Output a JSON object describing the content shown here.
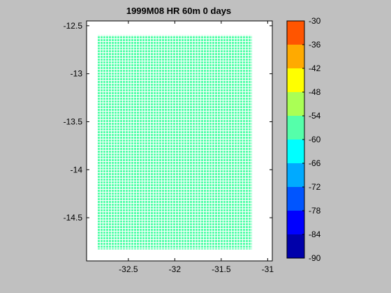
{
  "chart_data": {
    "type": "heatmap",
    "title": "1999M08 HR 60m 0 days",
    "xlabel": "",
    "ylabel": "",
    "xlim": [
      -32.95,
      -30.95
    ],
    "ylim": [
      -14.95,
      -12.45
    ],
    "x_ticks": [
      -32.5,
      -32,
      -31.5,
      -31
    ],
    "x_tick_labels": [
      "-32.5",
      "-32",
      "-31.5",
      "-31"
    ],
    "y_ticks": [
      -12.5,
      -13,
      -13.5,
      -14,
      -14.5
    ],
    "y_tick_labels": [
      "-12.5",
      "-13",
      "-13.5",
      "-14",
      "-14.5"
    ],
    "grid": false,
    "field": {
      "x_range": [
        -32.83,
        -31.17
      ],
      "y_range": [
        -14.83,
        -12.6
      ],
      "value_bin": "-60 to -54",
      "color": "#55ffaa"
    },
    "colorbar": {
      "levels": [
        -90,
        -84,
        -78,
        -72,
        -66,
        -60,
        -54,
        -48,
        -42,
        -36,
        -30
      ],
      "labels": [
        "-90",
        "-84",
        "-78",
        "-72",
        "-66",
        "-60",
        "-54",
        "-48",
        "-42",
        "-36",
        "-30"
      ],
      "colors": [
        "#0000aa",
        "#0000ff",
        "#0055ff",
        "#00aaff",
        "#00ffff",
        "#55ffaa",
        "#aaff55",
        "#ffff00",
        "#ffaa00",
        "#ff5500"
      ]
    }
  }
}
